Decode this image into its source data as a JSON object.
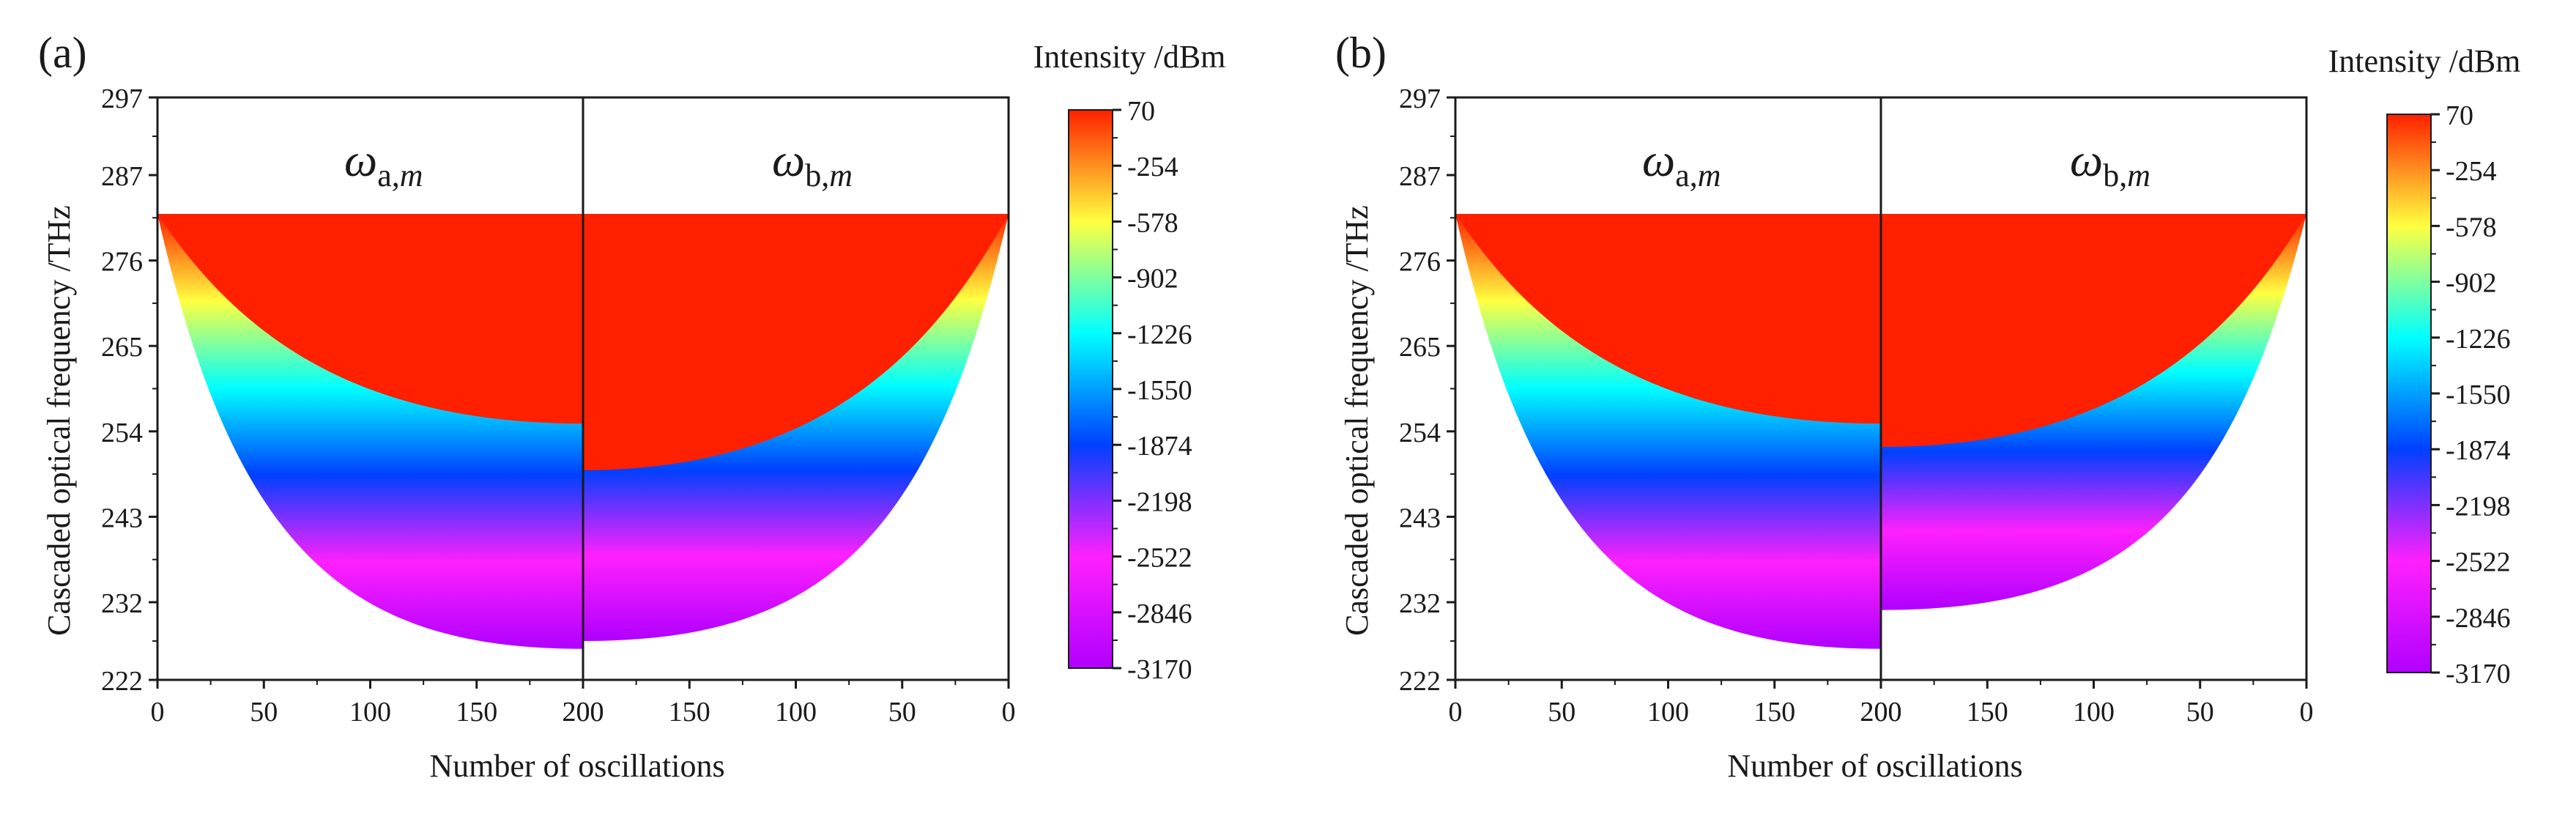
{
  "chart_data": [
    {
      "type": "heatmap",
      "panel_label": "(a)",
      "xlabel": "Number of oscillations",
      "ylabel": "Cascaded optical frequency /THz",
      "ylim": [
        222,
        297
      ],
      "y_ticks": [
        "222",
        "232",
        "243",
        "254",
        "265",
        "276",
        "287",
        "297"
      ],
      "x_ticks_left": [
        "0",
        "50",
        "100",
        "150",
        "200"
      ],
      "x_ticks_right": [
        "200",
        "150",
        "100",
        "50",
        "0"
      ],
      "xlim_left": [
        0,
        200
      ],
      "xlim_right": [
        200,
        0
      ],
      "panel_titles": {
        "left": {
          "symbol": "ω",
          "sub_a": "a,",
          "sub_b": "m"
        },
        "right": {
          "symbol": "ω",
          "sub_a": "b,",
          "sub_b": "m"
        }
      },
      "series": [
        {
          "name": "ω_a,m",
          "top": 282,
          "red_floor_at_200": 255,
          "bottom_at_200": 226
        },
        {
          "name": "ω_b,m",
          "top": 282,
          "red_floor_at_200": 249,
          "bottom_at_200": 227
        }
      ],
      "colorbar": {
        "title": "Intensity /dBm",
        "ticks": [
          "70",
          "-254",
          "-578",
          "-902",
          "-1226",
          "-1550",
          "-1874",
          "-2198",
          "-2522",
          "-2846",
          "-3170"
        ],
        "range": [
          -3170,
          70
        ],
        "colors": [
          "#ff2000",
          "#ffff40",
          "#00ffff",
          "#0040ff",
          "#ff20ff",
          "#b000ff"
        ]
      }
    },
    {
      "type": "heatmap",
      "panel_label": "(b)",
      "xlabel": "Number of oscillations",
      "ylabel": "Cascaded optical frequency /THz",
      "ylim": [
        222,
        297
      ],
      "y_ticks": [
        "222",
        "232",
        "243",
        "254",
        "265",
        "276",
        "287",
        "297"
      ],
      "x_ticks_left": [
        "0",
        "50",
        "100",
        "150",
        "200"
      ],
      "x_ticks_right": [
        "200",
        "150",
        "100",
        "50",
        "0"
      ],
      "xlim_left": [
        0,
        200
      ],
      "xlim_right": [
        200,
        0
      ],
      "panel_titles": {
        "left": {
          "symbol": "ω",
          "sub_a": "a,",
          "sub_b": "m"
        },
        "right": {
          "symbol": "ω",
          "sub_a": "b,",
          "sub_b": "m"
        }
      },
      "series": [
        {
          "name": "ω_a,m",
          "top": 282,
          "red_floor_at_200": 255,
          "bottom_at_200": 226
        },
        {
          "name": "ω_b,m",
          "top": 282,
          "red_floor_at_200": 252,
          "bottom_at_200": 231
        }
      ],
      "colorbar": {
        "title": "Intensity /dBm",
        "ticks": [
          "70",
          "-254",
          "-578",
          "-902",
          "-1226",
          "-1550",
          "-1874",
          "-2198",
          "-2522",
          "-2846",
          "-3170"
        ],
        "range": [
          -3170,
          70
        ],
        "colors": [
          "#ff2000",
          "#ffff40",
          "#00ffff",
          "#0040ff",
          "#ff20ff",
          "#b000ff"
        ]
      }
    }
  ]
}
